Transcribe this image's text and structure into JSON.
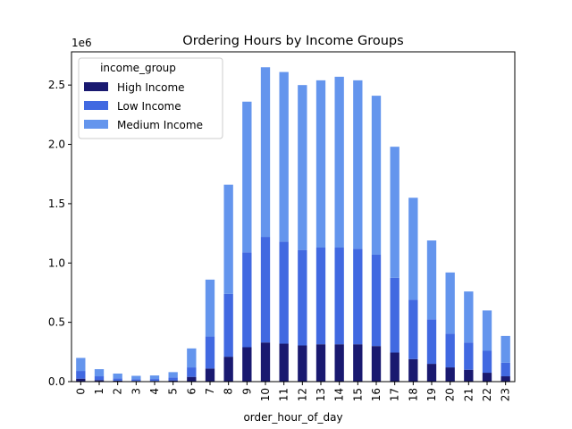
{
  "chart_data": {
    "type": "bar",
    "stacked": true,
    "title": "Ordering Hours by Income Groups",
    "xlabel": "order_hour_of_day",
    "ylabel": "",
    "y_offset_label": "1e6",
    "categories": [
      "0",
      "1",
      "2",
      "3",
      "4",
      "5",
      "6",
      "7",
      "8",
      "9",
      "10",
      "11",
      "12",
      "13",
      "14",
      "15",
      "16",
      "17",
      "18",
      "19",
      "20",
      "21",
      "22",
      "23"
    ],
    "ylim": [
      0,
      2.78
    ],
    "yticks": [
      0.0,
      0.5,
      1.0,
      1.5,
      2.0,
      2.5
    ],
    "ytick_labels": [
      "0.0",
      "0.5",
      "1.0",
      "1.5",
      "2.0",
      "2.5"
    ],
    "legend": {
      "title": "income_group",
      "placement": "top-left"
    },
    "series": [
      {
        "name": "High Income",
        "color": "#191970",
        "values": [
          0.025,
          0.013,
          0.008,
          0.006,
          0.006,
          0.01,
          0.04,
          0.11,
          0.21,
          0.29,
          0.33,
          0.32,
          0.305,
          0.315,
          0.315,
          0.315,
          0.3,
          0.245,
          0.19,
          0.15,
          0.12,
          0.1,
          0.075,
          0.045
        ]
      },
      {
        "name": "Low Income",
        "color": "#4169E1",
        "values": [
          0.065,
          0.032,
          0.02,
          0.015,
          0.016,
          0.025,
          0.08,
          0.27,
          0.53,
          0.8,
          0.89,
          0.86,
          0.805,
          0.815,
          0.815,
          0.805,
          0.77,
          0.63,
          0.5,
          0.375,
          0.285,
          0.23,
          0.185,
          0.115
        ]
      },
      {
        "name": "Medium Income",
        "color": "#6495ED",
        "values": [
          0.11,
          0.06,
          0.04,
          0.028,
          0.03,
          0.045,
          0.16,
          0.48,
          0.92,
          1.27,
          1.43,
          1.43,
          1.39,
          1.41,
          1.44,
          1.42,
          1.34,
          1.105,
          0.86,
          0.665,
          0.515,
          0.43,
          0.34,
          0.225
        ]
      }
    ]
  }
}
